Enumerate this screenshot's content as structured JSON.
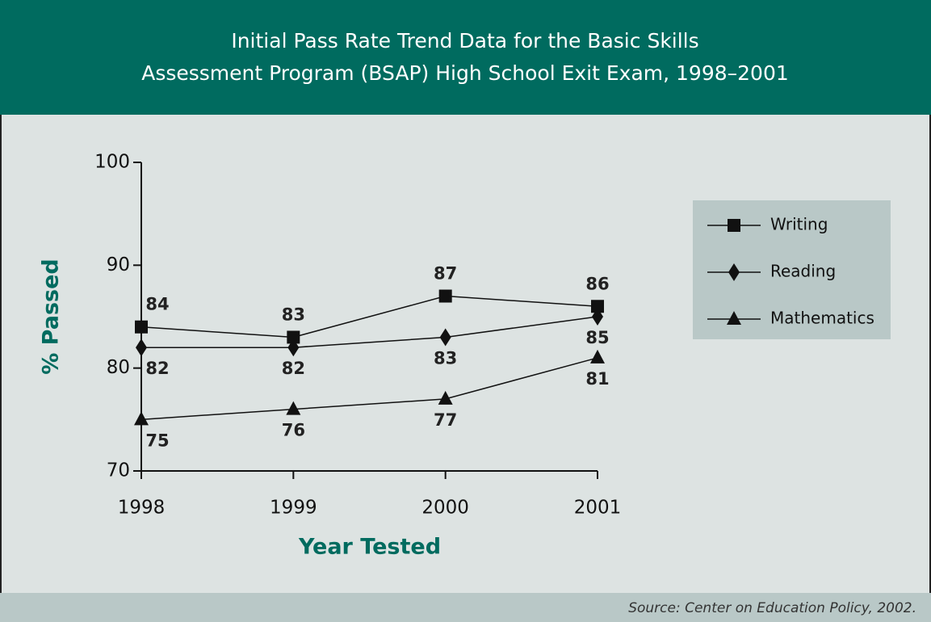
{
  "chart_data": {
    "type": "line",
    "title": [
      "Initial Pass Rate Trend Data for the Basic Skills",
      "Assessment Program (BSAP) High School Exit Exam, 1998–2001"
    ],
    "xlabel": "Year Tested",
    "ylabel": "% Passed",
    "source": "Source: Center on Education Policy, 2002.",
    "categories": [
      "1998",
      "1999",
      "2000",
      "2001"
    ],
    "series": [
      {
        "name": "Writing",
        "color": "#111111",
        "marker": "square",
        "values": [
          84,
          83,
          87,
          86
        ]
      },
      {
        "name": "Reading",
        "color": "#111111",
        "marker": "diamond",
        "values": [
          82,
          82,
          83,
          85
        ]
      },
      {
        "name": "Mathematics",
        "color": "#111111",
        "marker": "triangle",
        "values": [
          75,
          76,
          77,
          81
        ]
      }
    ],
    "ylim": [
      70,
      100
    ],
    "yticks": [
      70,
      80,
      90,
      100
    ],
    "legend": "right"
  }
}
